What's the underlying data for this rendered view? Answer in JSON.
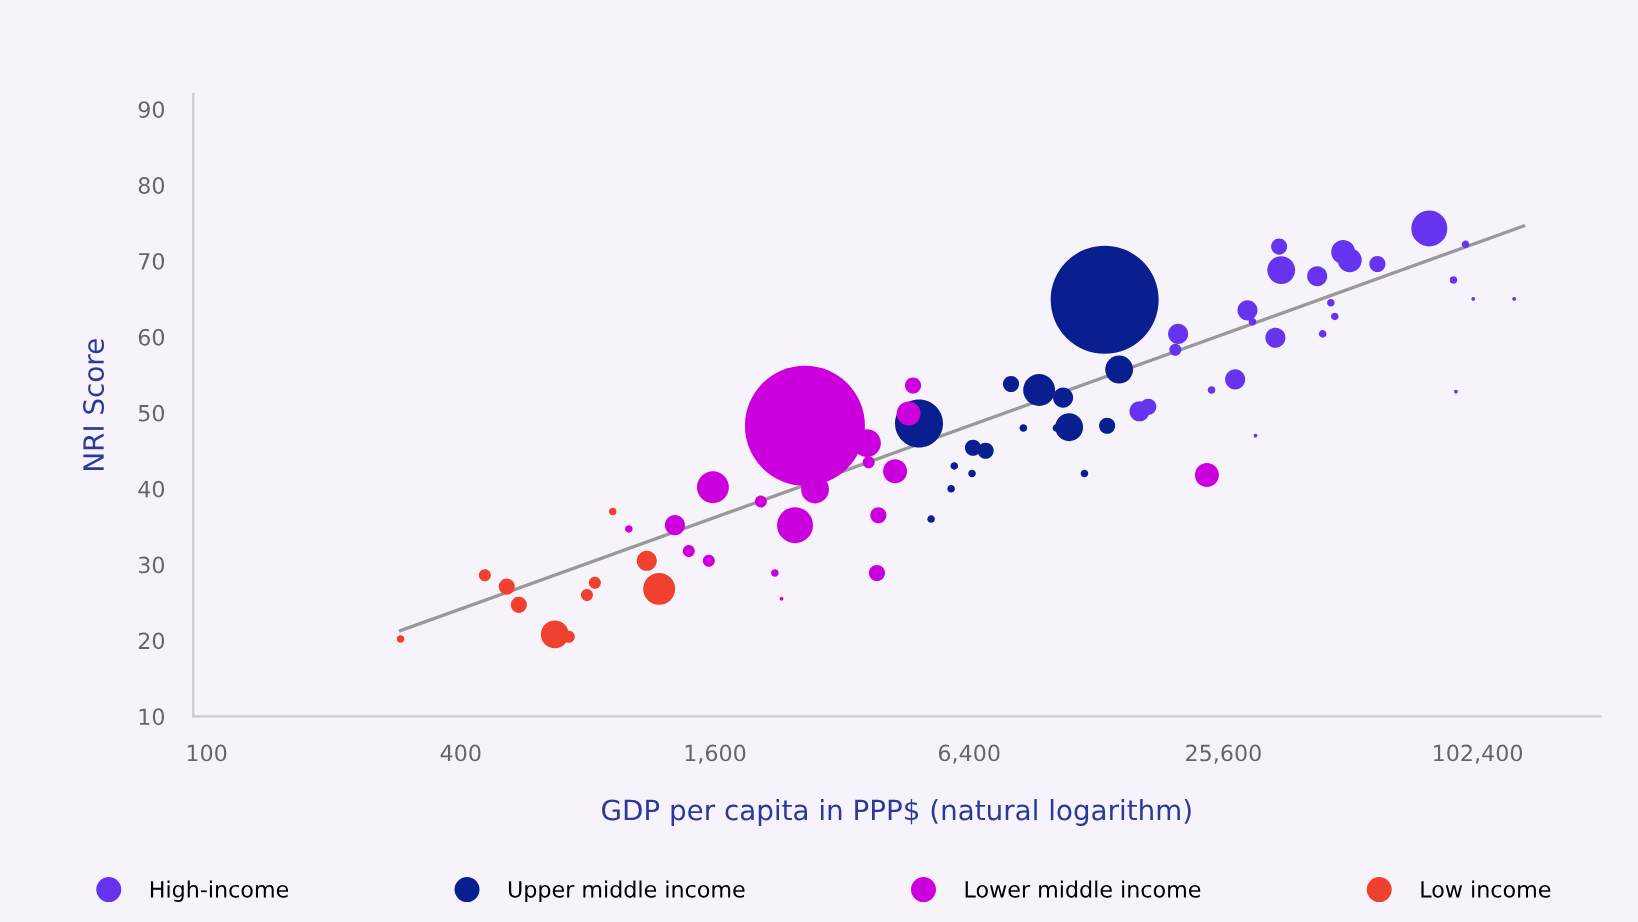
{
  "chart_data": {
    "type": "bubble",
    "xlabel": "GDP per capita in PPP$ (natural logarithm)",
    "ylabel": "NRI Score",
    "log": "x",
    "xlim": [
      93,
      200000
    ],
    "xticks": [
      100,
      400,
      {
        "value": 1600,
        "label": "1,600"
      },
      {
        "value": 6400,
        "label": "6,400"
      },
      {
        "value": 25600,
        "label": "25,600"
      },
      {
        "value": 102400,
        "label": "102,400"
      }
    ],
    "ylim": [
      10,
      92
    ],
    "yticks": [
      10,
      20,
      30,
      40,
      50,
      60,
      70,
      80,
      90
    ],
    "grid": false,
    "legend": "bottom",
    "marker": "circle",
    "series": [
      {
        "name": "High-income",
        "color": "#6633ee",
        "x": [
          78700,
          35100,
          34700,
          49200,
          51000,
          42700,
          59300,
          29200,
          34000,
          89800,
          95900,
          91000,
          19700,
          20000,
          27300,
          16200,
          17000,
          24000,
          30000,
          44000,
          47000,
          46000,
          100000,
          125000,
          30500
        ],
        "values": [
          74.3,
          68.8,
          71.9,
          71.2,
          70.1,
          68,
          69.6,
          63.5,
          59.9,
          67.5,
          72.2,
          52.8,
          58.3,
          60.4,
          54.4,
          50.2,
          50.8,
          53,
          62,
          60.4,
          62.7,
          64.5,
          65,
          65,
          47
        ],
        "sizes": [
          0.09,
          0.054,
          0.018,
          0.04,
          0.04,
          0.028,
          0.018,
          0.028,
          0.028,
          0.004,
          0.004,
          0.001,
          0.01,
          0.028,
          0.028,
          0.028,
          0.018,
          0.004,
          0.004,
          0.004,
          0.004,
          0.004,
          0.001,
          0.001,
          0.001
        ]
      },
      {
        "name": "Upper middle income",
        "color": "#0a1f8f",
        "x": [
          13400,
          4868,
          9372,
          8040,
          10680,
          14500,
          11040,
          13580,
          6535,
          7000,
          5900,
          6500,
          5800,
          5200,
          12000,
          10300,
          8600
        ],
        "values": [
          64.9,
          48.6,
          53,
          53.8,
          52,
          55.7,
          48.1,
          48.3,
          45.4,
          45,
          43,
          42,
          40,
          36,
          42,
          48,
          48
        ],
        "sizes": [
          0.81,
          0.16,
          0.071,
          0.018,
          0.028,
          0.054,
          0.054,
          0.018,
          0.018,
          0.018,
          0.004,
          0.004,
          0.004,
          0.004,
          0.004,
          0.004,
          0.004
        ]
      },
      {
        "name": "Lower middle income",
        "color": "#cc00dd",
        "x": [
          2613,
          1582,
          1286,
          1387,
          1547,
          1000,
          2476,
          2761,
          2055,
          3664,
          4712,
          4600,
          4272,
          3700,
          3900,
          3870,
          2218,
          2300,
          23400
        ],
        "values": [
          48.3,
          40.2,
          35.2,
          31.8,
          30.5,
          34.7,
          35.2,
          39.9,
          38.3,
          46,
          53.6,
          49.9,
          42.3,
          43.5,
          36.5,
          28.9,
          28.9,
          25.5,
          41.8
        ],
        "sizes": [
          1,
          0.071,
          0.028,
          0.01,
          0.01,
          0.004,
          0.09,
          0.054,
          0.01,
          0.054,
          0.018,
          0.04,
          0.04,
          0.01,
          0.018,
          0.018,
          0.004,
          0.001,
          0.04
        ]
      },
      {
        "name": "Low income",
        "color": "#f04030",
        "x": [
          288,
          456,
          514,
          549,
          916,
          831,
          796,
          668,
          721,
          1103,
          1180
        ],
        "values": [
          20.2,
          28.6,
          27.1,
          24.7,
          37,
          27.6,
          26,
          20.8,
          20.5,
          30.5,
          26.8
        ],
        "sizes": [
          0.004,
          0.01,
          0.018,
          0.018,
          0.004,
          0.01,
          0.01,
          0.054,
          0.01,
          0.028,
          0.071
        ]
      },
      {
        "type": "line",
        "marker": "none",
        "color": "#999999",
        "x": [
          288,
          131500
        ],
        "values": [
          21.3,
          74.6
        ]
      }
    ]
  }
}
